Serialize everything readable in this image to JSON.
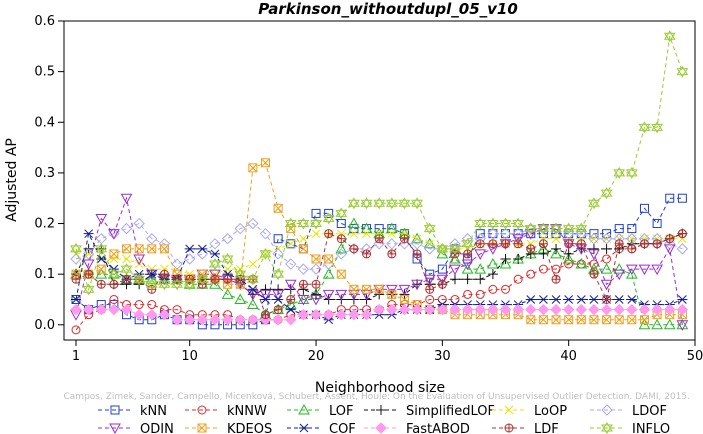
{
  "chart_data": {
    "type": "line",
    "title": "Parkinson_withoutdupl_05_v10",
    "xlabel": "Neighborhood size",
    "ylabel": "Adjusted AP",
    "xlim": [
      1,
      50
    ],
    "ylim": [
      -0.03,
      0.6
    ],
    "x_ticks": [
      1,
      10,
      20,
      30,
      40,
      50
    ],
    "y_ticks": [
      0.0,
      0.1,
      0.2,
      0.3,
      0.4,
      0.5,
      0.6
    ],
    "grid": false,
    "legend_placement": "bottom",
    "watermark": "Campos, Zimek, Sander, Campello, Micenková, Schubert, Assent, Houle: On the Evaluation of Unsupervised Outlier Detection. DAMI, 2015.",
    "x": [
      1,
      2,
      3,
      4,
      5,
      6,
      7,
      8,
      9,
      10,
      11,
      12,
      13,
      14,
      15,
      16,
      17,
      18,
      19,
      20,
      21,
      22,
      23,
      24,
      25,
      26,
      27,
      28,
      29,
      30,
      31,
      32,
      33,
      34,
      35,
      36,
      37,
      38,
      39,
      40,
      41,
      42,
      43,
      44,
      45,
      46,
      47,
      48,
      49
    ],
    "series": [
      {
        "name": "kNN",
        "color": "#1f3fd0",
        "marker": "square",
        "values": [
          0.05,
          0.03,
          0.04,
          0.04,
          0.02,
          0.01,
          0.01,
          0.02,
          0.01,
          0.01,
          0.0,
          0.0,
          0.0,
          0.0,
          0.0,
          0.01,
          0.17,
          0.16,
          0.15,
          0.22,
          0.22,
          0.2,
          0.19,
          0.19,
          0.19,
          0.19,
          0.18,
          0.13,
          0.1,
          0.11,
          0.15,
          0.13,
          0.18,
          0.18,
          0.18,
          0.18,
          0.18,
          0.18,
          0.18,
          0.18,
          0.18,
          0.18,
          0.18,
          0.19,
          0.19,
          0.23,
          0.2,
          0.25,
          0.25
        ]
      },
      {
        "name": "kNNW",
        "color": "#e02a2a",
        "marker": "circle",
        "values": [
          -0.01,
          0.02,
          0.03,
          0.05,
          0.04,
          0.04,
          0.04,
          0.03,
          0.03,
          0.02,
          0.02,
          0.02,
          0.02,
          0.01,
          0.01,
          0.01,
          0.01,
          0.02,
          0.02,
          0.02,
          0.02,
          0.03,
          0.03,
          0.03,
          0.03,
          0.04,
          0.04,
          0.04,
          0.05,
          0.05,
          0.05,
          0.06,
          0.06,
          0.07,
          0.07,
          0.09,
          0.1,
          0.11,
          0.11,
          0.12,
          0.12,
          0.12,
          0.13,
          0.15,
          0.15,
          0.16,
          0.16,
          0.17,
          0.18
        ]
      },
      {
        "name": "LOF",
        "color": "#22bb22",
        "marker": "triangle-up",
        "values": [
          0.1,
          0.1,
          0.1,
          0.1,
          0.09,
          0.09,
          0.09,
          0.09,
          0.09,
          0.08,
          0.08,
          0.08,
          0.06,
          0.05,
          0.04,
          0.02,
          0.03,
          0.04,
          0.05,
          0.06,
          0.1,
          0.15,
          0.2,
          0.19,
          0.18,
          0.19,
          0.18,
          0.17,
          0.16,
          0.14,
          0.13,
          0.11,
          0.11,
          0.12,
          0.12,
          0.13,
          0.14,
          0.15,
          0.14,
          0.13,
          0.12,
          0.11,
          0.11,
          0.11,
          0.1,
          0.0,
          0.0,
          0.0,
          0.0
        ]
      },
      {
        "name": "SimplifiedLOF",
        "color": "#111111",
        "marker": "plus",
        "values": [
          0.1,
          0.15,
          0.15,
          0.08,
          0.08,
          0.08,
          0.1,
          0.1,
          0.09,
          0.09,
          0.09,
          0.09,
          0.09,
          0.08,
          0.06,
          0.07,
          0.07,
          0.07,
          0.07,
          0.06,
          0.05,
          0.05,
          0.05,
          0.05,
          0.06,
          0.06,
          0.06,
          0.08,
          0.08,
          0.08,
          0.09,
          0.09,
          0.09,
          0.1,
          0.13,
          0.13,
          0.14,
          0.14,
          0.15,
          0.14,
          0.15,
          0.15,
          0.15,
          0.15,
          0.16,
          0.16,
          0.16,
          0.17,
          0.18
        ]
      },
      {
        "name": "LoOP",
        "color": "#e6e600",
        "marker": "x",
        "values": [
          0.14,
          0.14,
          0.13,
          0.13,
          0.13,
          0.12,
          0.11,
          0.11,
          0.11,
          0.1,
          0.1,
          0.1,
          0.11,
          0.11,
          0.12,
          0.14,
          0.15,
          0.16,
          0.17,
          0.18,
          0.18,
          0.18,
          0.18,
          0.18,
          0.18,
          0.18,
          0.18,
          0.17,
          0.16,
          0.15,
          0.15,
          0.15,
          0.16,
          0.16,
          0.16,
          0.16,
          0.16,
          0.17,
          0.17,
          0.17,
          0.17,
          0.17,
          0.17,
          0.17,
          0.17,
          0.17,
          0.17,
          0.17,
          0.17
        ]
      },
      {
        "name": "LDOF",
        "color": "#aaaaee",
        "marker": "diamond",
        "values": [
          0.13,
          0.14,
          0.17,
          0.18,
          0.19,
          0.2,
          0.17,
          0.16,
          0.12,
          0.13,
          0.14,
          0.16,
          0.17,
          0.19,
          0.2,
          0.18,
          0.14,
          0.12,
          0.11,
          0.11,
          0.12,
          0.14,
          0.15,
          0.15,
          0.16,
          0.16,
          0.16,
          0.16,
          0.15,
          0.15,
          0.16,
          0.17,
          0.17,
          0.18,
          0.18,
          0.18,
          0.19,
          0.19,
          0.19,
          0.18,
          0.18,
          0.17,
          0.17,
          0.17,
          0.17,
          0.17,
          0.17,
          0.16,
          0.15
        ]
      },
      {
        "name": "ODIN",
        "color": "#9a2ed0",
        "marker": "triangle-down",
        "values": [
          0.02,
          0.12,
          0.21,
          0.18,
          0.25,
          0.13,
          0.1,
          0.09,
          0.09,
          0.09,
          0.1,
          0.1,
          0.09,
          0.08,
          0.06,
          0.06,
          0.06,
          0.08,
          0.05,
          0.05,
          0.06,
          0.06,
          0.06,
          0.06,
          0.07,
          0.07,
          0.07,
          0.08,
          0.09,
          0.09,
          0.11,
          0.12,
          0.14,
          0.15,
          0.16,
          0.17,
          0.18,
          0.19,
          0.19,
          0.16,
          0.15,
          0.14,
          0.08,
          0.1,
          0.11,
          0.11,
          0.11,
          0.15,
          0.0
        ]
      },
      {
        "name": "KDEOS",
        "color": "#f0a020",
        "marker": "square-x",
        "values": [
          0.1,
          0.1,
          0.11,
          0.14,
          0.15,
          0.15,
          0.15,
          0.15,
          0.1,
          0.09,
          0.1,
          0.09,
          0.08,
          0.08,
          0.31,
          0.32,
          0.23,
          0.19,
          0.15,
          0.13,
          0.13,
          0.1,
          0.07,
          0.07,
          0.07,
          0.06,
          0.05,
          0.04,
          0.03,
          0.03,
          0.02,
          0.02,
          0.02,
          0.02,
          0.02,
          0.02,
          0.01,
          0.01,
          0.01,
          0.01,
          0.01,
          0.01,
          0.01,
          0.01,
          0.01,
          0.01,
          0.02,
          0.02,
          0.02
        ]
      },
      {
        "name": "COF",
        "color": "#102090",
        "marker": "asterisk",
        "values": [
          0.05,
          0.18,
          0.13,
          0.11,
          0.09,
          0.1,
          0.1,
          0.09,
          0.09,
          0.15,
          0.15,
          0.14,
          0.1,
          0.09,
          0.07,
          0.05,
          0.05,
          0.03,
          0.02,
          0.02,
          0.01,
          0.02,
          0.02,
          0.02,
          0.02,
          0.02,
          0.03,
          0.03,
          0.03,
          0.04,
          0.04,
          0.04,
          0.04,
          0.04,
          0.04,
          0.04,
          0.05,
          0.05,
          0.05,
          0.05,
          0.05,
          0.05,
          0.05,
          0.05,
          0.05,
          0.04,
          0.04,
          0.04,
          0.05
        ]
      },
      {
        "name": "FastABOD",
        "color": "#ff99ee",
        "marker": "diamond-filled",
        "values": [
          0.03,
          0.03,
          0.03,
          0.03,
          0.03,
          0.02,
          0.02,
          0.02,
          0.01,
          0.01,
          0.01,
          0.01,
          0.01,
          0.01,
          0.01,
          0.01,
          0.01,
          0.01,
          0.02,
          0.02,
          0.02,
          0.02,
          0.02,
          0.02,
          0.03,
          0.03,
          0.03,
          0.03,
          0.03,
          0.03,
          0.03,
          0.03,
          0.03,
          0.03,
          0.03,
          0.03,
          0.03,
          0.03,
          0.03,
          0.03,
          0.03,
          0.03,
          0.03,
          0.03,
          0.03,
          0.03,
          0.03,
          0.03,
          0.03
        ]
      },
      {
        "name": "LDF",
        "color": "#b03030",
        "marker": "circle-plus",
        "values": [
          0.09,
          0.1,
          0.08,
          0.08,
          0.09,
          0.09,
          0.07,
          0.1,
          0.09,
          0.09,
          0.08,
          0.09,
          0.09,
          0.09,
          0.09,
          0.02,
          0.03,
          0.05,
          0.08,
          0.08,
          0.18,
          0.17,
          0.15,
          0.14,
          0.17,
          0.14,
          0.17,
          0.14,
          0.07,
          0.08,
          0.14,
          0.14,
          0.16,
          0.16,
          0.16,
          0.16,
          0.15,
          0.16,
          0.09,
          0.16,
          0.16,
          0.1,
          0.05,
          0.16,
          0.15,
          0.16,
          0.16,
          0.17,
          0.18
        ]
      },
      {
        "name": "INFLO",
        "color": "#99cc33",
        "marker": "hexagram",
        "values": [
          0.15,
          0.07,
          0.15,
          0.1,
          0.11,
          0.09,
          0.08,
          0.08,
          0.08,
          0.08,
          0.09,
          0.12,
          0.13,
          0.1,
          0.09,
          0.14,
          0.1,
          0.2,
          0.2,
          0.2,
          0.21,
          0.22,
          0.24,
          0.24,
          0.24,
          0.24,
          0.24,
          0.24,
          0.19,
          0.15,
          0.15,
          0.16,
          0.2,
          0.2,
          0.2,
          0.2,
          0.19,
          0.19,
          0.19,
          0.19,
          0.19,
          0.24,
          0.26,
          0.3,
          0.3,
          0.39,
          0.39,
          0.57,
          0.5
        ]
      }
    ]
  }
}
